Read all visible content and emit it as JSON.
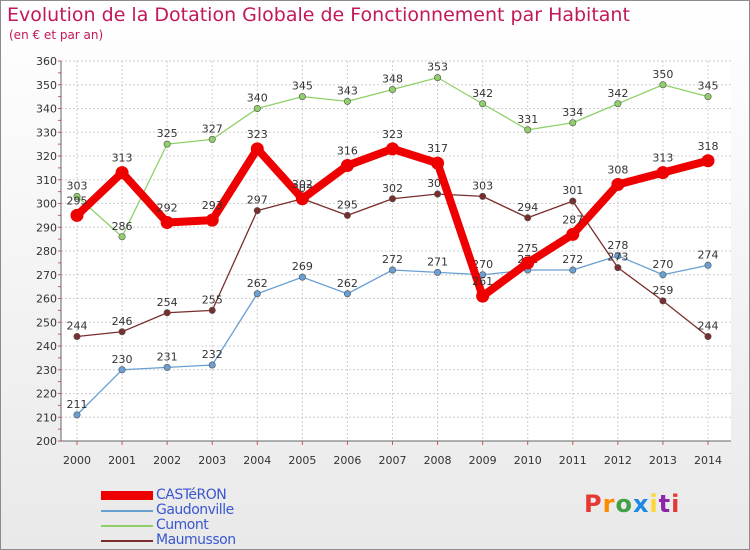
{
  "header": {
    "title": "Evolution de la Dotation Globale de Fonctionnement par Habitant",
    "subtitle": "(en € et par an)"
  },
  "chart_data": {
    "type": "line",
    "title": "Evolution de la Dotation Globale de Fonctionnement par Habitant",
    "subtitle": "(en € et par an)",
    "xlabel": "",
    "ylabel": "",
    "ylim": [
      200,
      360
    ],
    "ytick_step": 10,
    "grid": true,
    "legend_position": "bottom-left",
    "x": [
      "2000",
      "2001",
      "2002",
      "2003",
      "2004",
      "2005",
      "2006",
      "2007",
      "2008",
      "2009",
      "2010",
      "2011",
      "2012",
      "2013",
      "2014"
    ],
    "series": [
      {
        "name": "CASTéRON",
        "color": "#ee0000",
        "values": [
          295,
          313,
          292,
          293,
          323,
          302,
          316,
          323,
          317,
          261,
          275,
          287,
          308,
          313,
          318
        ]
      },
      {
        "name": "Gaudonville",
        "color": "#6a9fd4",
        "values": [
          211,
          230,
          231,
          232,
          262,
          269,
          262,
          272,
          271,
          270,
          272,
          272,
          278,
          270,
          274
        ]
      },
      {
        "name": "Cumont",
        "color": "#8fd06a",
        "values": [
          303,
          286,
          325,
          327,
          340,
          345,
          343,
          348,
          353,
          342,
          331,
          334,
          342,
          350,
          345
        ]
      },
      {
        "name": "Maumusson",
        "color": "#7a2e2e",
        "values": [
          244,
          246,
          254,
          255,
          297,
          302,
          295,
          302,
          304,
          303,
          294,
          301,
          273,
          259,
          244
        ]
      }
    ]
  },
  "logo": {
    "letters": [
      "P",
      "r",
      "o",
      "x",
      "i",
      "t",
      "i"
    ],
    "colors": [
      "#e53935",
      "#fb8c00",
      "#43a047",
      "#1e88e5",
      "#fdd835",
      "#8e24aa",
      "#e53935"
    ]
  }
}
